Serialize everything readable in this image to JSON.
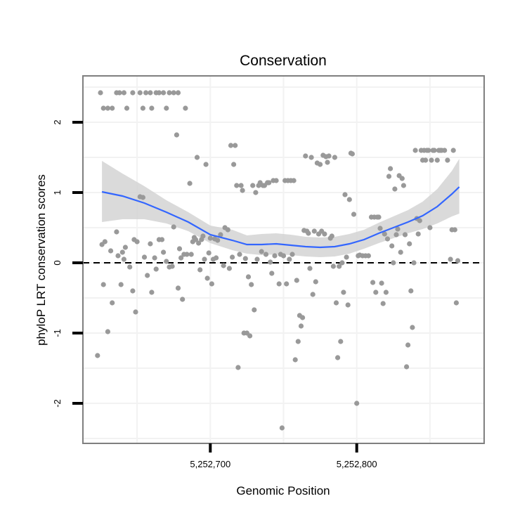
{
  "chart_data": {
    "type": "scatter",
    "title": "Conservation",
    "xlabel": "Genomic Position",
    "ylabel": "phyloP LRT conservation scores",
    "xlim": [
      5252613,
      5252887
    ],
    "ylim": [
      -2.57,
      2.66
    ],
    "x_ticks": [
      5252700,
      5252800
    ],
    "x_tick_labels": [
      "5,252,700",
      "5,252,800"
    ],
    "y_ticks": [
      -2,
      -1,
      0,
      1,
      2
    ],
    "y_tick_labels": [
      "-2",
      "-1",
      "0",
      "1",
      "2"
    ],
    "grid": true,
    "reference_line": {
      "y": 0,
      "style": "dashed",
      "color": "#000000"
    },
    "colors": {
      "points": "#999999",
      "smooth_line": "#3366ff",
      "ribbon": "#d4d4d4",
      "grid": "#f2f2f2",
      "panel_border": "#7f7f7f"
    },
    "series": [
      {
        "points": [
          [
            5252625,
            2.42
          ],
          [
            5252627,
            2.2
          ],
          [
            5252630,
            2.2
          ],
          [
            5252633,
            2.2
          ],
          [
            5252636,
            2.42
          ],
          [
            5252638,
            2.42
          ],
          [
            5252641,
            2.42
          ],
          [
            5252643,
            2.2
          ],
          [
            5252647,
            2.42
          ],
          [
            5252652,
            2.42
          ],
          [
            5252654,
            2.2
          ],
          [
            5252656,
            2.42
          ],
          [
            5252659,
            2.42
          ],
          [
            5252660,
            2.2
          ],
          [
            5252663,
            2.42
          ],
          [
            5252665,
            2.42
          ],
          [
            5252668,
            2.42
          ],
          [
            5252670,
            2.2
          ],
          [
            5252672,
            2.42
          ],
          [
            5252675,
            2.42
          ],
          [
            5252678,
            2.42
          ],
          [
            5252683,
            2.2
          ],
          [
            5252623,
            -1.32
          ],
          [
            5252626,
            0.26
          ],
          [
            5252627,
            -0.31
          ],
          [
            5252628,
            0.3
          ],
          [
            5252630,
            -0.98
          ],
          [
            5252632,
            0.17
          ],
          [
            5252633,
            -0.57
          ],
          [
            5252636,
            0.44
          ],
          [
            5252637,
            0.1
          ],
          [
            5252639,
            -0.31
          ],
          [
            5252640,
            0.15
          ],
          [
            5252641,
            0.05
          ],
          [
            5252642,
            0.22
          ],
          [
            5252645,
            -0.06
          ],
          [
            5252647,
            -0.4
          ],
          [
            5252648,
            0.33
          ],
          [
            5252649,
            -0.7
          ],
          [
            5252650,
            0.3
          ],
          [
            5252652,
            0.94
          ],
          [
            5252654,
            0.93
          ],
          [
            5252655,
            0.08
          ],
          [
            5252657,
            -0.18
          ],
          [
            5252659,
            0.27
          ],
          [
            5252660,
            -0.42
          ],
          [
            5252662,
            0.07
          ],
          [
            5252663,
            -0.09
          ],
          [
            5252665,
            0.33
          ],
          [
            5252667,
            0.33
          ],
          [
            5252668,
            0.15
          ],
          [
            5252670,
            0.02
          ],
          [
            5252672,
            -0.06
          ],
          [
            5252674,
            -0.05
          ],
          [
            5252675,
            0.51
          ],
          [
            5252677,
            1.82
          ],
          [
            5252678,
            -0.36
          ],
          [
            5252679,
            0.2
          ],
          [
            5252680,
            0.07
          ],
          [
            5252681,
            -0.52
          ],
          [
            5252682,
            0.12
          ],
          [
            5252684,
            0.12
          ],
          [
            5252686,
            1.13
          ],
          [
            5252687,
            0.12
          ],
          [
            5252688,
            0.3
          ],
          [
            5252689,
            0.36
          ],
          [
            5252690,
            0.33
          ],
          [
            5252691,
            1.5
          ],
          [
            5252692,
            0.28
          ],
          [
            5252693,
            -0.1
          ],
          [
            5252694,
            0.33
          ],
          [
            5252695,
            0.38
          ],
          [
            5252696,
            0.05
          ],
          [
            5252697,
            1.4
          ],
          [
            5252698,
            -0.22
          ],
          [
            5252699,
            0.14
          ],
          [
            5252700,
            0.35
          ],
          [
            5252701,
            -0.3
          ],
          [
            5252702,
            0.05
          ],
          [
            5252703,
            0.34
          ],
          [
            5252704,
            0.07
          ],
          [
            5252705,
            0.32
          ],
          [
            5252707,
            0.4
          ],
          [
            5252709,
            -0.04
          ],
          [
            5252710,
            0.5
          ],
          [
            5252712,
            0.47
          ],
          [
            5252713,
            -0.08
          ],
          [
            5252714,
            1.67
          ],
          [
            5252715,
            0.08
          ],
          [
            5252716,
            1.4
          ],
          [
            5252717,
            1.67
          ],
          [
            5252718,
            1.1
          ],
          [
            5252719,
            -1.49
          ],
          [
            5252720,
            0.12
          ],
          [
            5252721,
            1.1
          ],
          [
            5252722,
            1.03
          ],
          [
            5252723,
            -1.0
          ],
          [
            5252724,
            0.06
          ],
          [
            5252725,
            -1.0
          ],
          [
            5252726,
            -0.2
          ],
          [
            5252727,
            -1.04
          ],
          [
            5252728,
            -0.31
          ],
          [
            5252729,
            1.1
          ],
          [
            5252730,
            -0.67
          ],
          [
            5252731,
            1.0
          ],
          [
            5252732,
            0.05
          ],
          [
            5252733,
            1.1
          ],
          [
            5252734,
            1.14
          ],
          [
            5252735,
            0.16
          ],
          [
            5252736,
            1.1
          ],
          [
            5252737,
            1.1
          ],
          [
            5252738,
            0.12
          ],
          [
            5252739,
            1.14
          ],
          [
            5252740,
            1.14
          ],
          [
            5252741,
            0.01
          ],
          [
            5252742,
            -0.15
          ],
          [
            5252743,
            1.17
          ],
          [
            5252744,
            0.1
          ],
          [
            5252745,
            1.17
          ],
          [
            5252747,
            -0.3
          ],
          [
            5252748,
            0.12
          ],
          [
            5252749,
            -2.35
          ],
          [
            5252750,
            0.1
          ],
          [
            5252751,
            1.17
          ],
          [
            5252752,
            -0.3
          ],
          [
            5252753,
            1.17
          ],
          [
            5252754,
            0.05
          ],
          [
            5252755,
            1.17
          ],
          [
            5252756,
            0.12
          ],
          [
            5252757,
            1.17
          ],
          [
            5252758,
            -1.38
          ],
          [
            5252759,
            -0.25
          ],
          [
            5252760,
            -1.12
          ],
          [
            5252761,
            -0.75
          ],
          [
            5252762,
            -0.9
          ],
          [
            5252763,
            -0.78
          ],
          [
            5252764,
            0.46
          ],
          [
            5252765,
            1.52
          ],
          [
            5252766,
            0.45
          ],
          [
            5252767,
            0.42
          ],
          [
            5252768,
            -0.08
          ],
          [
            5252769,
            1.5
          ],
          [
            5252770,
            -0.45
          ],
          [
            5252771,
            0.45
          ],
          [
            5252772,
            -0.27
          ],
          [
            5252773,
            1.42
          ],
          [
            5252774,
            0.41
          ],
          [
            5252775,
            1.4
          ],
          [
            5252776,
            0.45
          ],
          [
            5252777,
            1.53
          ],
          [
            5252778,
            0.41
          ],
          [
            5252779,
            1.51
          ],
          [
            5252780,
            1.43
          ],
          [
            5252781,
            1.52
          ],
          [
            5252782,
            0.35
          ],
          [
            5252783,
            0.38
          ],
          [
            5252784,
            -0.05
          ],
          [
            5252785,
            1.5
          ],
          [
            5252786,
            -0.57
          ],
          [
            5252787,
            -1.35
          ],
          [
            5252788,
            -0.05
          ],
          [
            5252789,
            -1.12
          ],
          [
            5252790,
            0.0
          ],
          [
            5252791,
            -0.42
          ],
          [
            5252792,
            0.97
          ],
          [
            5252793,
            0.08
          ],
          [
            5252794,
            -0.6
          ],
          [
            5252795,
            0.9
          ],
          [
            5252796,
            1.56
          ],
          [
            5252797,
            1.55
          ],
          [
            5252798,
            0.69
          ],
          [
            5252800,
            -2.0
          ],
          [
            5252801,
            0.1
          ],
          [
            5252802,
            0.11
          ],
          [
            5252804,
            0.1
          ],
          [
            5252806,
            0.1
          ],
          [
            5252808,
            0.1
          ],
          [
            5252810,
            0.65
          ],
          [
            5252811,
            -0.28
          ],
          [
            5252812,
            0.65
          ],
          [
            5252813,
            -0.42
          ],
          [
            5252814,
            0.65
          ],
          [
            5252815,
            0.65
          ],
          [
            5252816,
            0.49
          ],
          [
            5252817,
            -0.29
          ],
          [
            5252818,
            -0.58
          ],
          [
            5252819,
            0.41
          ],
          [
            5252820,
            -0.42
          ],
          [
            5252821,
            0.34
          ],
          [
            5252822,
            1.23
          ],
          [
            5252823,
            1.34
          ],
          [
            5252824,
            0.24
          ],
          [
            5252825,
            0.0
          ],
          [
            5252826,
            1.05
          ],
          [
            5252827,
            0.4
          ],
          [
            5252828,
            0.48
          ],
          [
            5252829,
            1.24
          ],
          [
            5252830,
            0.15
          ],
          [
            5252831,
            1.2
          ],
          [
            5252832,
            1.1
          ],
          [
            5252833,
            0.4
          ],
          [
            5252834,
            -1.48
          ],
          [
            5252835,
            -1.17
          ],
          [
            5252836,
            0.27
          ],
          [
            5252837,
            -0.4
          ],
          [
            5252838,
            -0.92
          ],
          [
            5252839,
            0.0
          ],
          [
            5252840,
            1.6
          ],
          [
            5252841,
            0.63
          ],
          [
            5252842,
            0.41
          ],
          [
            5252843,
            0.6
          ],
          [
            5252844,
            1.6
          ],
          [
            5252845,
            1.46
          ],
          [
            5252846,
            1.6
          ],
          [
            5252847,
            1.46
          ],
          [
            5252848,
            1.6
          ],
          [
            5252849,
            1.6
          ],
          [
            5252850,
            0.5
          ],
          [
            5252851,
            1.46
          ],
          [
            5252852,
            1.6
          ],
          [
            5252853,
            1.6
          ],
          [
            5252855,
            1.46
          ],
          [
            5252856,
            1.6
          ],
          [
            5252857,
            1.6
          ],
          [
            5252858,
            1.6
          ],
          [
            5252860,
            1.6
          ],
          [
            5252862,
            1.46
          ],
          [
            5252864,
            0.05
          ],
          [
            5252865,
            0.47
          ],
          [
            5252866,
            1.6
          ],
          [
            5252867,
            0.47
          ],
          [
            5252868,
            -0.57
          ],
          [
            5252869,
            0.03
          ]
        ]
      }
    ],
    "smooth": {
      "x": [
        5252626,
        5252640,
        5252655,
        5252670,
        5252685,
        5252700,
        5252715,
        5252725,
        5252735,
        5252745,
        5252755,
        5252765,
        5252775,
        5252785,
        5252795,
        5252805,
        5252815,
        5252825,
        5252835,
        5252845,
        5252855,
        5252865,
        5252870
      ],
      "y": [
        1.01,
        0.95,
        0.85,
        0.72,
        0.58,
        0.4,
        0.32,
        0.26,
        0.26,
        0.27,
        0.25,
        0.23,
        0.22,
        0.23,
        0.27,
        0.33,
        0.42,
        0.5,
        0.58,
        0.67,
        0.8,
        0.98,
        1.08
      ],
      "lower": [
        0.58,
        0.62,
        0.62,
        0.56,
        0.45,
        0.28,
        0.18,
        0.13,
        0.11,
        0.12,
        0.11,
        0.09,
        0.08,
        0.09,
        0.13,
        0.2,
        0.28,
        0.35,
        0.42,
        0.48,
        0.56,
        0.66,
        0.7
      ],
      "upper": [
        1.45,
        1.27,
        1.09,
        0.89,
        0.72,
        0.53,
        0.47,
        0.39,
        0.41,
        0.42,
        0.4,
        0.37,
        0.36,
        0.37,
        0.41,
        0.47,
        0.57,
        0.66,
        0.75,
        0.87,
        1.05,
        1.31,
        1.48
      ]
    }
  }
}
